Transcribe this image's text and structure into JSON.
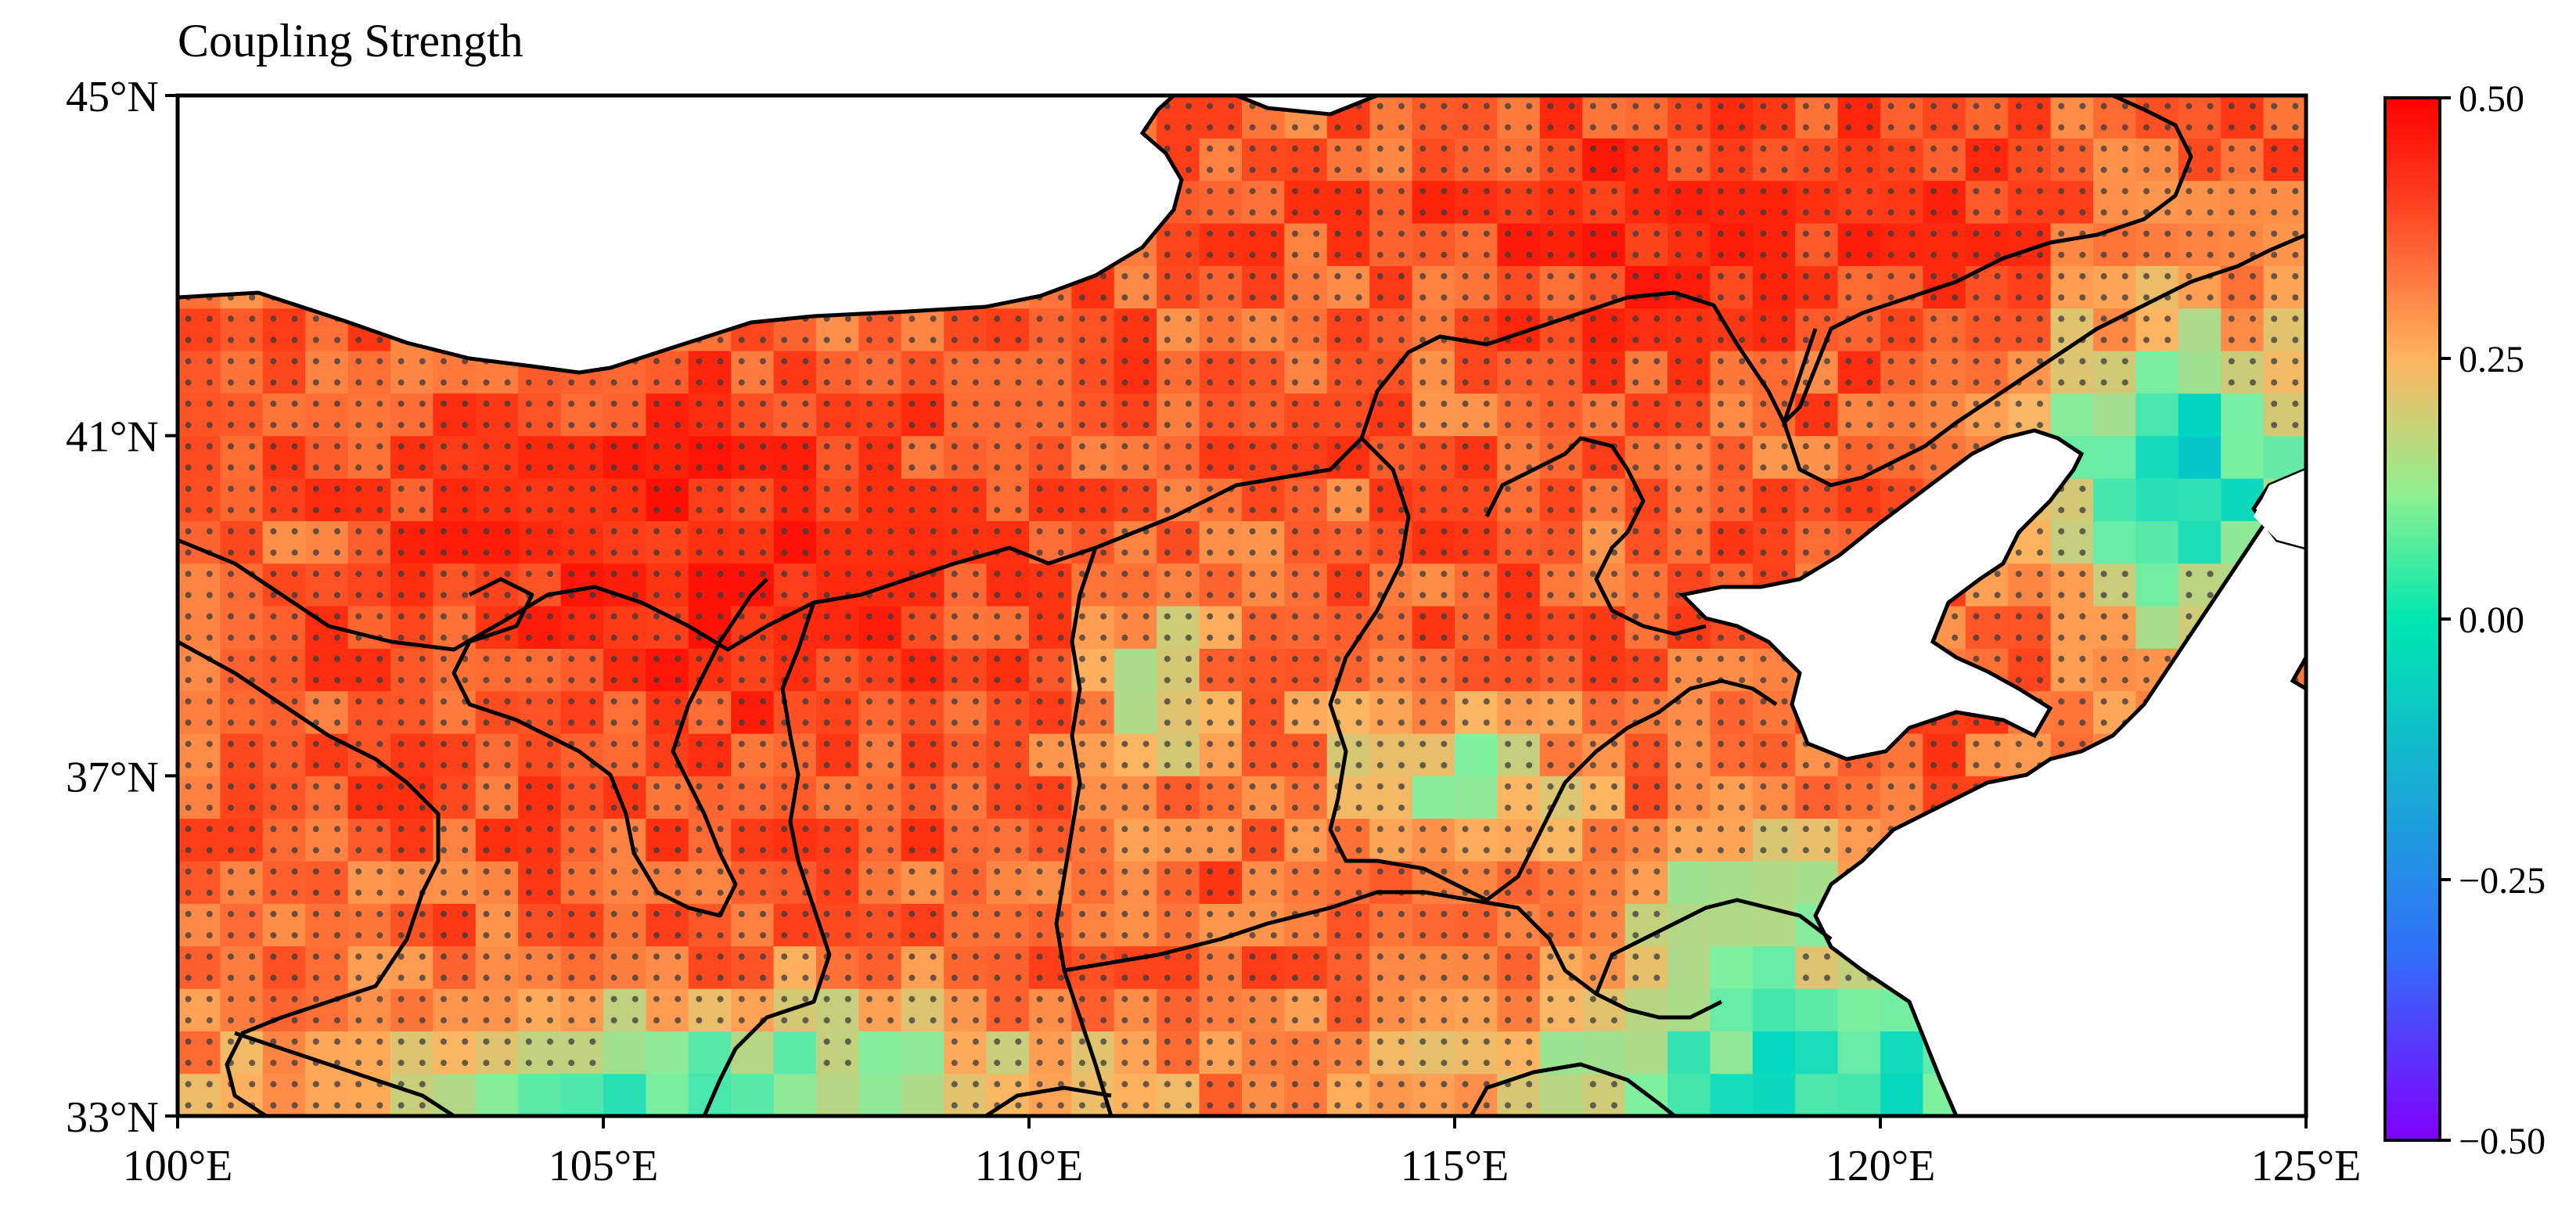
{
  "title": "Coupling Strength",
  "map": {
    "lon_range": [
      100,
      125
    ],
    "lat_range": [
      33,
      45
    ],
    "lon_ticks": [
      {
        "value": 100,
        "label": "100°E"
      },
      {
        "value": 105,
        "label": "105°E"
      },
      {
        "value": 110,
        "label": "110°E"
      },
      {
        "value": 115,
        "label": "115°E"
      },
      {
        "value": 120,
        "label": "120°E"
      },
      {
        "value": 125,
        "label": "125°E"
      }
    ],
    "lat_ticks": [
      {
        "value": 45,
        "label": "45°N"
      },
      {
        "value": 41,
        "label": "41°N"
      },
      {
        "value": 37,
        "label": "37°N"
      },
      {
        "value": 33,
        "label": "33°N"
      }
    ],
    "grid_resolution_deg": 0.5,
    "stippling": "dots mark statistically significant grid cells"
  },
  "colorbar": {
    "min": -0.5,
    "max": 0.5,
    "ticks": [
      {
        "value": 0.5,
        "label": "0.50"
      },
      {
        "value": 0.25,
        "label": "0.25"
      },
      {
        "value": 0.0,
        "label": "0.00"
      },
      {
        "value": -0.25,
        "label": "−0.25"
      },
      {
        "value": -0.5,
        "label": "−0.50"
      }
    ],
    "colormap": "rainbow",
    "stops": [
      "#8000ff",
      "#3070f8",
      "#00d8c0",
      "#7ff0a0",
      "#ffb460",
      "#ff3010",
      "#ff0000"
    ]
  }
}
